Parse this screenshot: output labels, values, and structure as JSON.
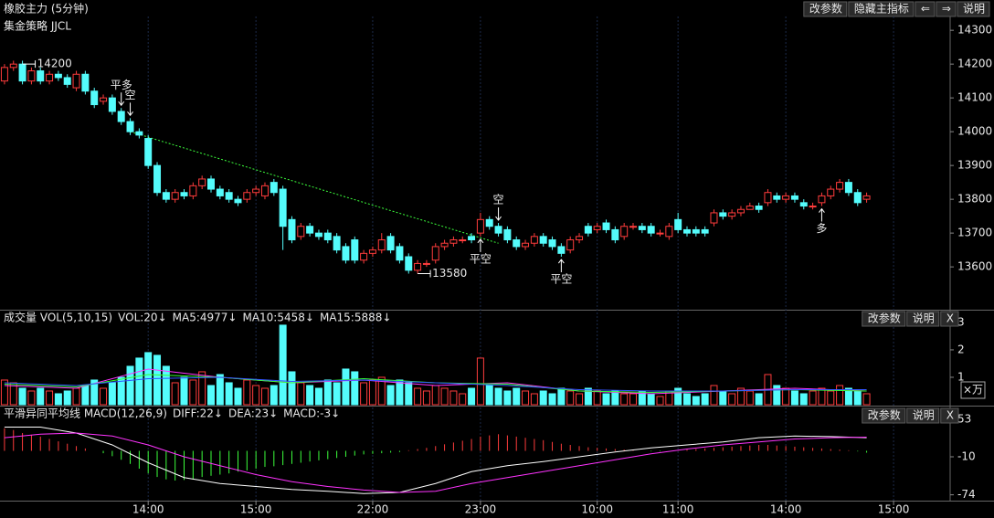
{
  "toolbar": {
    "title": "橡胶主力 (5分钟)",
    "buttons": [
      "改参数",
      "隐藏主指标",
      "⇐",
      "⇒",
      "说明"
    ]
  },
  "chart_data": [
    {
      "type": "candlestick",
      "title": "集金策略 JJCL",
      "up_color": "#ff3c3c",
      "down_color": "#54fcfc",
      "xlim": [
        -0.5,
        105.3
      ],
      "ylim": [
        13476,
        14341
      ],
      "yticks": [
        13600,
        13700,
        13800,
        13900,
        14000,
        14100,
        14200,
        14300
      ],
      "open": [
        14150,
        14190,
        14200,
        14150,
        14180,
        14150,
        14170,
        14160,
        14130,
        14170,
        14120,
        14090,
        14100,
        14060,
        14030,
        14000,
        13980,
        13900,
        13820,
        13800,
        13820,
        13810,
        13840,
        13860,
        13830,
        13820,
        13800,
        13800,
        13820,
        13810,
        13850,
        13830,
        13740,
        13690,
        13720,
        13700,
        13700,
        13690,
        13660,
        13680,
        13620,
        13640,
        13650,
        13690,
        13660,
        13630,
        13590,
        13610,
        13620,
        13660,
        13670,
        13680,
        13690,
        13700,
        13740,
        13720,
        13710,
        13680,
        13660,
        13670,
        13690,
        13680,
        13660,
        13650,
        13680,
        13720,
        13710,
        13730,
        13710,
        13690,
        13720,
        13720,
        13720,
        13700,
        13690,
        13740,
        13710,
        13710,
        13710,
        13730,
        13760,
        13750,
        13760,
        13770,
        13780,
        13790,
        13810,
        13800,
        13810,
        13790,
        13780,
        13790,
        13810,
        13830,
        13850,
        13820,
        13800
      ],
      "close": [
        14190,
        14200,
        14150,
        14180,
        14150,
        14170,
        14160,
        14140,
        14170,
        14120,
        14080,
        14100,
        14060,
        14030,
        14000,
        13990,
        13900,
        13820,
        13800,
        13820,
        13810,
        13840,
        13860,
        13830,
        13810,
        13800,
        13790,
        13820,
        13830,
        13840,
        13820,
        13720,
        13680,
        13720,
        13700,
        13690,
        13680,
        13650,
        13620,
        13620,
        13640,
        13650,
        13680,
        13650,
        13620,
        13590,
        13610,
        13610,
        13660,
        13670,
        13680,
        13680,
        13680,
        13740,
        13720,
        13700,
        13680,
        13660,
        13670,
        13690,
        13670,
        13660,
        13640,
        13680,
        13690,
        13700,
        13720,
        13710,
        13680,
        13720,
        13720,
        13710,
        13700,
        13700,
        13720,
        13710,
        13700,
        13700,
        13700,
        13760,
        13750,
        13760,
        13770,
        13780,
        13770,
        13820,
        13800,
        13810,
        13800,
        13780,
        13780,
        13810,
        13830,
        13850,
        13820,
        13790,
        13810
      ],
      "high": [
        14200,
        14210,
        14210,
        14190,
        14190,
        14180,
        14180,
        14170,
        14180,
        14180,
        14130,
        14110,
        14110,
        14070,
        14040,
        14010,
        13990,
        13910,
        13830,
        13830,
        13830,
        13850,
        13870,
        13870,
        13840,
        13830,
        13810,
        13830,
        13840,
        13850,
        13860,
        13840,
        13750,
        13730,
        13730,
        13710,
        13710,
        13700,
        13670,
        13690,
        13650,
        13660,
        13700,
        13700,
        13670,
        13640,
        13620,
        13620,
        13670,
        13680,
        13690,
        13690,
        13700,
        13760,
        13750,
        13730,
        13720,
        13690,
        13680,
        13700,
        13700,
        13690,
        13670,
        13690,
        13700,
        13730,
        13730,
        13740,
        13720,
        13730,
        13730,
        13730,
        13730,
        13710,
        13730,
        13760,
        13720,
        13720,
        13720,
        13770,
        13770,
        13770,
        13780,
        13790,
        13790,
        13830,
        13820,
        13820,
        13820,
        13800,
        13790,
        13820,
        13840,
        13860,
        13860,
        13830,
        13820
      ],
      "low": [
        14140,
        14180,
        14140,
        14140,
        14140,
        14140,
        14150,
        14130,
        14120,
        14110,
        14070,
        14080,
        14050,
        14020,
        13990,
        13980,
        13890,
        13810,
        13790,
        13790,
        13800,
        13800,
        13830,
        13820,
        13800,
        13790,
        13780,
        13790,
        13810,
        13800,
        13810,
        13650,
        13670,
        13680,
        13690,
        13680,
        13670,
        13640,
        13610,
        13610,
        13610,
        13630,
        13640,
        13640,
        13610,
        13580,
        13580,
        13600,
        13610,
        13650,
        13660,
        13670,
        13670,
        13690,
        13710,
        13690,
        13670,
        13650,
        13650,
        13660,
        13660,
        13650,
        13630,
        13640,
        13670,
        13690,
        13700,
        13700,
        13670,
        13680,
        13710,
        13700,
        13690,
        13690,
        13680,
        13700,
        13690,
        13690,
        13690,
        13720,
        13740,
        13740,
        13750,
        13770,
        13760,
        13780,
        13790,
        13790,
        13790,
        13770,
        13770,
        13780,
        13800,
        13820,
        13810,
        13780,
        13790
      ],
      "annotations": [
        {
          "x": 2,
          "value": 14200
        },
        {
          "x": 46,
          "value": 13580
        }
      ],
      "signals": [
        {
          "x": 13,
          "label": "平多",
          "side": "above",
          "color": "#3cff3c"
        },
        {
          "x": 14,
          "label": "空",
          "side": "above",
          "color": "#3cff3c"
        },
        {
          "x": 53,
          "label": "平空",
          "side": "below",
          "color": "#ff3c3c"
        },
        {
          "x": 55,
          "label": "空",
          "side": "above",
          "color": "#3cff3c"
        },
        {
          "x": 62,
          "label": "平空",
          "side": "below",
          "color": "#ff3c3c"
        },
        {
          "x": 91,
          "label": "多",
          "side": "below",
          "color": "#ff3c3c"
        }
      ],
      "trade_line": {
        "color": "#3cff3c",
        "x": [
          14,
          55
        ],
        "values": [
          14000,
          13670
        ]
      }
    },
    {
      "type": "bar",
      "title": "成交量 VOL(5,10,15)",
      "subtitle": "VOL:20↓",
      "unit_label": "×万",
      "buttons": [
        "改参数",
        "说明",
        "X"
      ],
      "ylim": [
        0,
        3.33
      ],
      "yticks": [
        1,
        2,
        3
      ],
      "values": [
        0.9,
        0.8,
        0.6,
        0.5,
        0.6,
        0.5,
        0.4,
        0.5,
        0.6,
        0.7,
        0.9,
        0.6,
        0.8,
        1.0,
        1.4,
        1.7,
        1.9,
        1.8,
        1.4,
        0.8,
        1.0,
        0.9,
        1.2,
        0.7,
        1.1,
        0.8,
        0.6,
        0.9,
        0.7,
        0.6,
        0.7,
        2.9,
        1.2,
        0.8,
        0.7,
        0.6,
        0.9,
        0.8,
        1.3,
        1.2,
        0.8,
        0.9,
        1.0,
        0.7,
        0.9,
        0.8,
        0.6,
        0.5,
        0.7,
        0.6,
        0.5,
        0.4,
        0.6,
        1.7,
        0.7,
        0.6,
        0.5,
        0.6,
        0.5,
        0.4,
        0.5,
        0.4,
        0.6,
        0.5,
        0.4,
        0.6,
        0.5,
        0.4,
        0.5,
        0.4,
        0.4,
        0.5,
        0.4,
        0.3,
        0.5,
        0.6,
        0.4,
        0.3,
        0.4,
        0.7,
        0.5,
        0.4,
        0.6,
        0.5,
        0.4,
        1.1,
        0.7,
        0.6,
        0.5,
        0.4,
        0.5,
        0.6,
        0.5,
        0.7,
        0.6,
        0.5,
        0.4
      ],
      "series": [
        {
          "name": "MA5:4977↓",
          "color": "#ff33ff",
          "x": [
            0,
            8,
            16,
            24,
            32,
            40,
            48,
            56,
            64,
            72,
            80,
            88,
            96
          ],
          "values": [
            0.7,
            0.6,
            1.3,
            1.0,
            0.8,
            0.9,
            0.7,
            0.8,
            0.5,
            0.4,
            0.5,
            0.6,
            0.5
          ]
        },
        {
          "name": "MA10:5458↓",
          "color": "#33ff33",
          "x": [
            0,
            8,
            16,
            24,
            32,
            40,
            48,
            56,
            64,
            72,
            80,
            88,
            96
          ],
          "values": [
            0.75,
            0.65,
            1.1,
            1.0,
            0.8,
            0.95,
            0.8,
            0.75,
            0.5,
            0.45,
            0.5,
            0.55,
            0.5
          ]
        },
        {
          "name": "MA15:5888↓",
          "color": "#3355ff",
          "x": [
            0,
            8,
            16,
            24,
            32,
            40,
            48,
            56,
            64,
            72,
            80,
            88,
            96
          ],
          "values": [
            0.8,
            0.7,
            0.95,
            1.0,
            0.85,
            0.9,
            0.8,
            0.7,
            0.55,
            0.5,
            0.5,
            0.55,
            0.55
          ]
        }
      ]
    },
    {
      "type": "macd",
      "title": "平滑异同平均线 MACD(12,26,9)",
      "buttons": [
        "改参数",
        "说明",
        "X"
      ],
      "ylim": [
        -82.3,
        71.5
      ],
      "yticks": [
        53,
        -10,
        -74
      ],
      "xticks": [
        {
          "value": 16,
          "label": "14:00"
        },
        {
          "value": 28,
          "label": "15:00"
        },
        {
          "value": 41,
          "label": "22:00"
        },
        {
          "value": 53,
          "label": "23:00"
        },
        {
          "value": 66,
          "label": "10:00"
        },
        {
          "value": 75,
          "label": "11:00"
        },
        {
          "value": 87,
          "label": "14:00"
        },
        {
          "value": 99,
          "label": "15:00"
        }
      ],
      "series": [
        {
          "name": "DIFF:22↓",
          "color": "#ffffff",
          "x": [
            0,
            4,
            8,
            12,
            16,
            20,
            24,
            28,
            32,
            36,
            40,
            44,
            48,
            52,
            56,
            60,
            64,
            68,
            72,
            76,
            80,
            84,
            88,
            92,
            96
          ],
          "values": [
            40,
            40,
            30,
            10,
            -20,
            -45,
            -55,
            -60,
            -65,
            -68,
            -72,
            -70,
            -55,
            -35,
            -25,
            -18,
            -10,
            -2,
            5,
            10,
            15,
            22,
            25,
            24,
            22
          ]
        },
        {
          "name": "DEA:23↓",
          "color": "#ff33ff",
          "x": [
            0,
            4,
            8,
            12,
            16,
            20,
            24,
            28,
            32,
            36,
            40,
            44,
            48,
            52,
            56,
            60,
            64,
            68,
            72,
            76,
            80,
            84,
            88,
            92,
            96
          ],
          "values": [
            22,
            28,
            30,
            25,
            10,
            -10,
            -25,
            -40,
            -52,
            -60,
            -66,
            -70,
            -68,
            -55,
            -45,
            -35,
            -25,
            -15,
            -5,
            3,
            10,
            15,
            20,
            22,
            23
          ]
        }
      ],
      "histogram": {
        "name": "MACD:-3↓",
        "up_color": "#ff3c3c",
        "down_color": "#3cff3c",
        "values": [
          38,
          35,
          30,
          27,
          24,
          20,
          16,
          12,
          8,
          4,
          0,
          -4,
          -9,
          -15,
          -22,
          -30,
          -38,
          -44,
          -48,
          -50,
          -49,
          -47,
          -44,
          -42,
          -40,
          -38,
          -35,
          -33,
          -30,
          -27,
          -26,
          -24,
          -22,
          -20,
          -18,
          -16,
          -14,
          -12,
          -10,
          -8,
          -6,
          -5,
          -4,
          -3,
          -2,
          1,
          3,
          5,
          8,
          11,
          14,
          17,
          20,
          24,
          26,
          28,
          26,
          24,
          22,
          20,
          18,
          15,
          12,
          10,
          8,
          6,
          5,
          4,
          3,
          2,
          1,
          0,
          -1,
          -1,
          0,
          1,
          2,
          3,
          4,
          5,
          6,
          7,
          8,
          9,
          10,
          10,
          9,
          8,
          7,
          6,
          5,
          4,
          3,
          2,
          1,
          -1,
          -3
        ]
      }
    }
  ]
}
